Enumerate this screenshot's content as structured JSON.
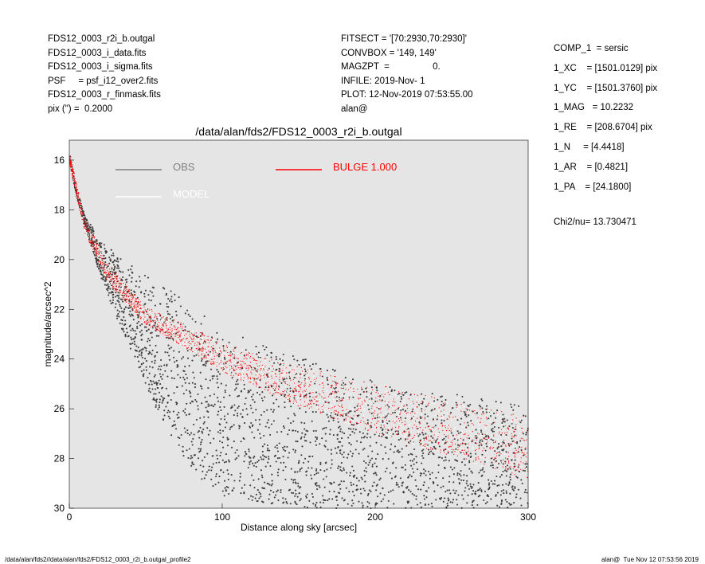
{
  "header_left": [
    "FDS12_0003_r2i_b.outgal",
    "FDS12_0003_i_data.fits",
    "FDS12_0003_i_sigma.fits",
    "PSF     = psf_i12_over2.fits",
    "FDS12_0003_r_finmask.fits",
    "pix (\") =  0.2000"
  ],
  "header_mid": [
    "FITSECT = '[70:2930,70:2930]'",
    "CONVBOX = '149, 149'",
    "MAGZPT  =                 0.",
    "INFILE: 2019-Nov- 1",
    "PLOT: 12-Nov-2019 07:53:55.00",
    "alan@"
  ],
  "params": [
    "COMP_1  = sersic",
    "1_XC    = [1501.0129] pix",
    "1_YC    = [1501.3760] pix",
    "1_MAG   = 10.2232",
    "1_RE    = [208.6704] pix",
    "1_N     = [4.4418]",
    "1_AR    = [0.4821]",
    "1_PA    = [24.1800]"
  ],
  "chi2": "Chi2/nu=       13.730471",
  "footer_left": "/data/alan/fds2//data/alan/fds2/FDS12_0003_r2i_b.outgal_profile2",
  "footer_right": "alan@  Tue Nov 12 07:53:56 2019",
  "colors": {
    "background": "#e5e5e5",
    "obs": "#3d3d3d",
    "model": "#ffffff",
    "bulge": "#ff0000",
    "obs_legend": "#7f7f7f"
  },
  "chart_data": {
    "type": "scatter",
    "title": "/data/alan/fds2/FDS12_0003_r2i_b.outgal",
    "xlabel": "Distance along sky [arcsec]",
    "ylabel": "magnitude/arcsec^2",
    "xlim": [
      0,
      300
    ],
    "ylim": [
      30,
      15.2
    ],
    "y_inverted": true,
    "xticks": [
      "0",
      "100",
      "200",
      "300"
    ],
    "yticks": [
      "16",
      "18",
      "20",
      "22",
      "24",
      "26",
      "28",
      "30"
    ],
    "legend": [
      {
        "label": "OBS",
        "color": "#7f7f7f"
      },
      {
        "label": "BULGE  1.000",
        "color": "#ff0000"
      },
      {
        "label": "MODEL",
        "color": "#ffffff"
      }
    ],
    "series": [
      {
        "name": "OBS",
        "style": "points",
        "upper_envelope": [
          [
            0.5,
            15.8
          ],
          [
            5,
            17.2
          ],
          [
            10,
            18.2
          ],
          [
            20,
            19.2
          ],
          [
            30,
            19.7
          ],
          [
            40,
            20.2
          ],
          [
            50,
            20.6
          ],
          [
            60,
            21.0
          ],
          [
            70,
            21.3
          ],
          [
            80,
            21.8
          ],
          [
            100,
            22.8
          ],
          [
            150,
            23.9
          ],
          [
            200,
            24.9
          ],
          [
            250,
            25.3
          ],
          [
            300,
            25.9
          ]
        ],
        "lower_envelope": [
          [
            0.5,
            16.2
          ],
          [
            5,
            17.5
          ],
          [
            10,
            18.6
          ],
          [
            20,
            20.6
          ],
          [
            30,
            22.2
          ],
          [
            40,
            23.6
          ],
          [
            50,
            25.0
          ],
          [
            60,
            26.5
          ],
          [
            70,
            27.5
          ],
          [
            80,
            28.5
          ],
          [
            100,
            29.5
          ],
          [
            150,
            30
          ],
          [
            300,
            30
          ]
        ]
      },
      {
        "name": "MODEL",
        "style": "points",
        "upper_envelope": [
          [
            0.5,
            15.8
          ],
          [
            10,
            18.3
          ],
          [
            25,
            20.1
          ],
          [
            50,
            21.9
          ],
          [
            100,
            23.3
          ],
          [
            150,
            24.3
          ],
          [
            200,
            25.0
          ],
          [
            250,
            25.7
          ],
          [
            300,
            26.3
          ]
        ],
        "lower_envelope": [
          [
            0.5,
            16.2
          ],
          [
            10,
            18.9
          ],
          [
            25,
            20.9
          ],
          [
            50,
            22.6
          ],
          [
            100,
            24.5
          ],
          [
            150,
            25.9
          ],
          [
            200,
            27.0
          ],
          [
            250,
            27.9
          ],
          [
            300,
            29.0
          ]
        ]
      },
      {
        "name": "BULGE  1.000",
        "style": "points",
        "upper_envelope": [
          [
            0.5,
            15.8
          ],
          [
            10,
            18.3
          ],
          [
            25,
            20.1
          ],
          [
            50,
            21.9
          ],
          [
            100,
            23.3
          ],
          [
            150,
            24.3
          ],
          [
            200,
            25.0
          ],
          [
            250,
            25.7
          ],
          [
            300,
            26.3
          ]
        ],
        "lower_envelope": [
          [
            0.5,
            16.2
          ],
          [
            10,
            18.9
          ],
          [
            25,
            20.9
          ],
          [
            50,
            22.6
          ],
          [
            100,
            24.5
          ],
          [
            150,
            25.9
          ],
          [
            200,
            27.0
          ],
          [
            250,
            27.9
          ],
          [
            300,
            28.8
          ]
        ]
      }
    ]
  }
}
